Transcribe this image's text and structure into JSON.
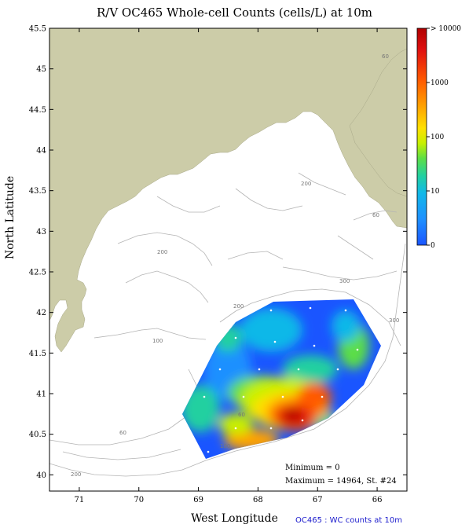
{
  "title": "R/V OC465 Whole-cell Counts (cells/L) at 10m",
  "axes": {
    "xlabel": "West Longitude",
    "ylabel": "North Latitude",
    "xticks": [
      "71",
      "70",
      "69",
      "68",
      "67",
      "66"
    ],
    "yticks": [
      "45.5",
      "45",
      "44.5",
      "44",
      "43.5",
      "43",
      "42.5",
      "42",
      "41.5",
      "41",
      "40.5",
      "40"
    ],
    "xlim": [
      71.5,
      65.5
    ],
    "ylim": [
      39.8,
      45.5
    ]
  },
  "colorbar": {
    "labels": [
      "> 10000",
      "1000",
      "100",
      "10",
      "0"
    ],
    "colors": [
      "#b00000",
      "#e01010",
      "#ff5a00",
      "#ffa200",
      "#ffe000",
      "#c8f000",
      "#5cde46",
      "#22d0a0",
      "#10b8e8",
      "#1e90ff",
      "#1a55ff"
    ]
  },
  "contour_labels": [
    "60",
    "200",
    "60",
    "200",
    "300",
    "300",
    "200",
    "100",
    "60",
    "100",
    "60",
    "200"
  ],
  "stats": {
    "minimum": "Minimum = 0",
    "maximum": "Maximum = 14964, St. #24"
  },
  "caption": "OC465 : WC counts at 10m",
  "colors": {
    "land": "#cccca8",
    "ocean": "#ffffff",
    "contour": "#b4b4b4",
    "frame": "#000000"
  }
}
